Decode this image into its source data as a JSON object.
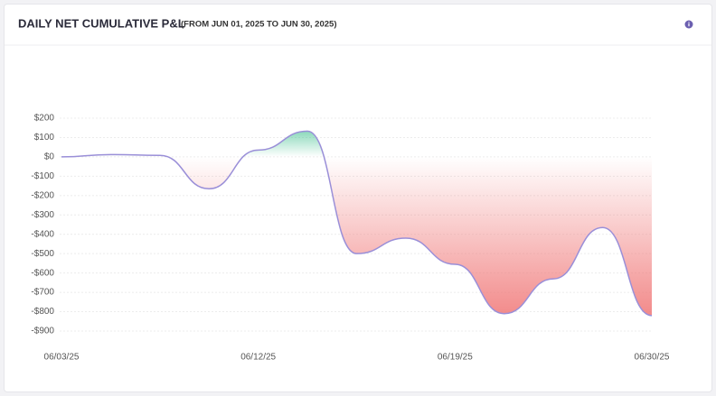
{
  "chart_data": {
    "type": "area",
    "title": "DAILY NET CUMULATIVE P&L",
    "subtitle": "(FROM JUN 01, 2025 TO JUN 30, 2025)",
    "categories": [
      "06/03/25",
      null,
      null,
      null,
      "06/12/25",
      null,
      null,
      null,
      "06/19/25",
      null,
      null,
      null,
      "06/30/25"
    ],
    "series": [
      {
        "name": "Net Cumulative P&L",
        "color": "#9a8fd8",
        "positive_color": "#3dbf8d",
        "negative_color": "#f07878",
        "values": [
          0,
          12,
          8,
          -165,
          35,
          133,
          -500,
          -420,
          -555,
          -810,
          -630,
          -365,
          -820
        ]
      }
    ],
    "ylim": [
      -900,
      200
    ],
    "yticks": [
      {
        "value": 200,
        "label": "$200"
      },
      {
        "value": 100,
        "label": "$100"
      },
      {
        "value": 0,
        "label": "$0"
      },
      {
        "value": -100,
        "label": "-$100"
      },
      {
        "value": -200,
        "label": "-$200"
      },
      {
        "value": -300,
        "label": "-$300"
      },
      {
        "value": -400,
        "label": "-$400"
      },
      {
        "value": -500,
        "label": "-$500"
      },
      {
        "value": -600,
        "label": "-$600"
      },
      {
        "value": -700,
        "label": "-$700"
      },
      {
        "value": -800,
        "label": "-$800"
      },
      {
        "value": -900,
        "label": "-$900"
      }
    ],
    "grid": true
  }
}
